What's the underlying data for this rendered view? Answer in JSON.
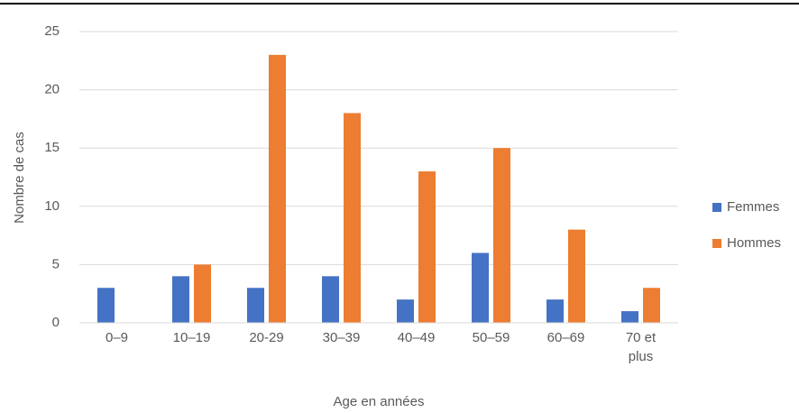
{
  "chart_data": {
    "type": "bar",
    "x_label": "Age en années",
    "y_label": "Nombre de cas",
    "categories": [
      "0–9",
      "10–19",
      "20-29",
      "30–39",
      "40–49",
      "50–59",
      "60–69",
      "70 et plus"
    ],
    "series": [
      {
        "name": "Femmes",
        "color": "#4472c4",
        "values": [
          3,
          4,
          3,
          4,
          2,
          6,
          2,
          1
        ]
      },
      {
        "name": "Hommes",
        "color": "#ed7d31",
        "values": [
          0,
          5,
          23,
          18,
          13,
          15,
          8,
          3
        ]
      }
    ],
    "ylim": [
      0,
      25
    ],
    "yticks": [
      0,
      5,
      10,
      15,
      20,
      25
    ],
    "grid": true,
    "legend": "right"
  }
}
